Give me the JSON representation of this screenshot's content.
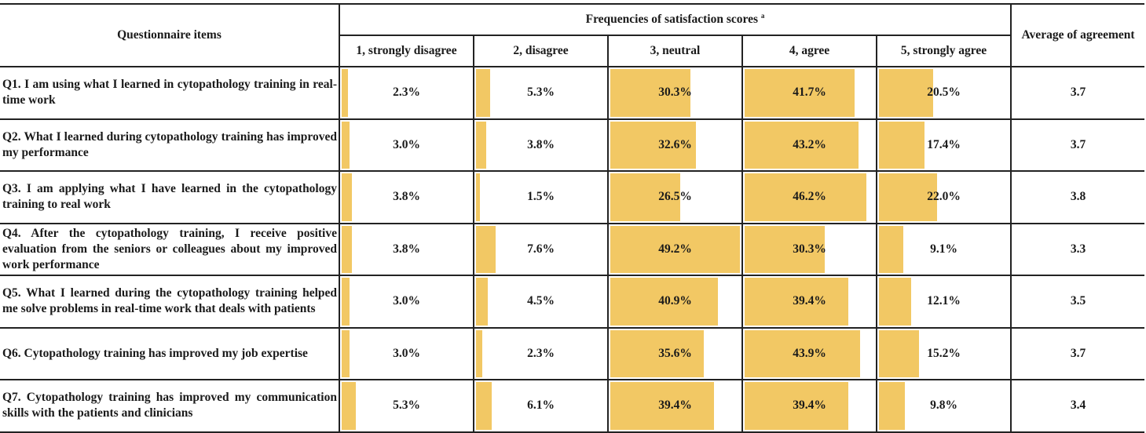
{
  "header": {
    "questionnaire_items": "Questionnaire items",
    "frequencies": "Frequencies of satisfaction scores",
    "frequencies_sup": "a",
    "average": "Average of agreement",
    "scores": [
      "1, strongly disagree",
      "2, disagree",
      "3, neutral",
      "4, agree",
      "5, strongly agree"
    ]
  },
  "rows": [
    {
      "question": "Q1. I am using what I learned in cytopathology training in real-time work",
      "pcts": [
        "2.3%",
        "5.3%",
        "30.3%",
        "41.7%",
        "20.5%"
      ],
      "values": [
        2.3,
        5.3,
        30.3,
        41.7,
        20.5
      ],
      "average": "3.7"
    },
    {
      "question": "Q2. What I learned during cytopathology training has improved my performance",
      "pcts": [
        "3.0%",
        "3.8%",
        "32.6%",
        "43.2%",
        "17.4%"
      ],
      "values": [
        3.0,
        3.8,
        32.6,
        43.2,
        17.4
      ],
      "average": "3.7"
    },
    {
      "question": "Q3. I am applying what I have learned in the cytopathology training to real work",
      "pcts": [
        "3.8%",
        "1.5%",
        "26.5%",
        "46.2%",
        "22.0%"
      ],
      "values": [
        3.8,
        1.5,
        26.5,
        46.2,
        22.0
      ],
      "average": "3.8"
    },
    {
      "question": "Q4. After the cytopathology training, I receive positive evaluation from the seniors or colleagues about my improved work performance",
      "pcts": [
        "3.8%",
        "7.6%",
        "49.2%",
        "30.3%",
        "9.1%"
      ],
      "values": [
        3.8,
        7.6,
        49.2,
        30.3,
        9.1
      ],
      "average": "3.3"
    },
    {
      "question": "Q5. What I learned during the cytopathology training helped me solve problems in real-time work that deals with patients",
      "pcts": [
        "3.0%",
        "4.5%",
        "40.9%",
        "39.4%",
        "12.1%"
      ],
      "values": [
        3.0,
        4.5,
        40.9,
        39.4,
        12.1
      ],
      "average": "3.5"
    },
    {
      "question": "Q6. Cytopathology training has improved my job expertise",
      "pcts": [
        "3.0%",
        "2.3%",
        "35.6%",
        "43.9%",
        "15.2%"
      ],
      "values": [
        3.0,
        2.3,
        35.6,
        43.9,
        15.2
      ],
      "average": "3.7"
    },
    {
      "question": "Q7. Cytopathology training has improved my communication skills with the patients and clinicians",
      "pcts": [
        "5.3%",
        "6.1%",
        "39.4%",
        "39.4%",
        "9.8%"
      ],
      "values": [
        5.3,
        6.1,
        39.4,
        39.4,
        9.8
      ],
      "average": "3.4"
    }
  ],
  "bar_scale_max": 49.2,
  "colors": {
    "bar": "#f2c864",
    "border": "#222222"
  }
}
